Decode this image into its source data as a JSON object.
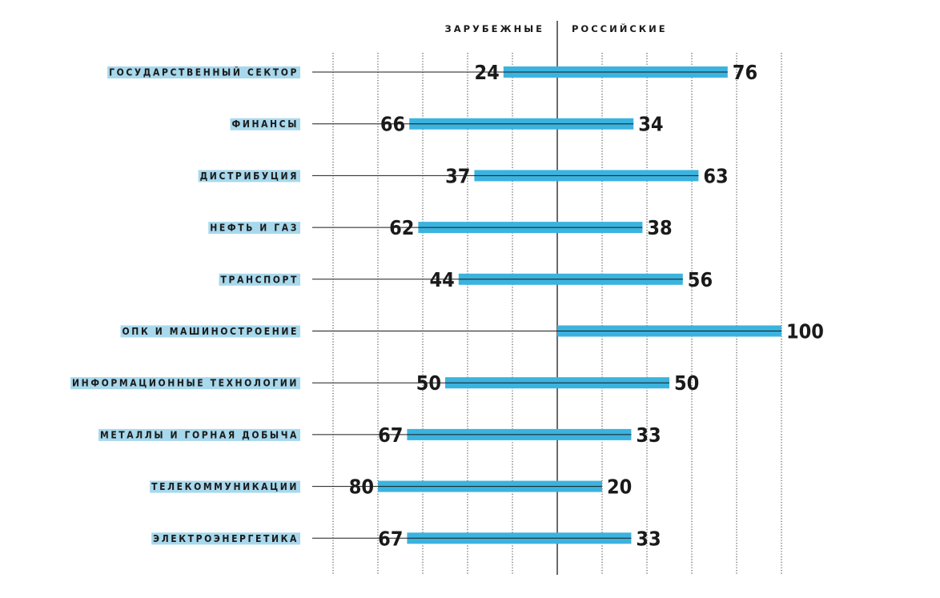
{
  "chart_data": {
    "type": "bar",
    "subtype": "diverging-horizontal-bar",
    "left_header": "ЗАРУБЕЖНЫЕ",
    "right_header": "РОССИЙСКИЕ",
    "categories": [
      "ГОСУДАРСТВЕННЫЙ СЕКТОР",
      "ФИНАНСЫ",
      "ДИСТРИБУЦИЯ",
      "НЕФТЬ И ГАЗ",
      "ТРАНСПОРТ",
      "ОПК И МАШИНОСТРОЕНИЕ",
      "ИНФОРМАЦИОННЫЕ ТЕХНОЛОГИИ",
      "МЕТАЛЛЫ И ГОРНАЯ ДОБЫЧА",
      "ТЕЛЕКОММУНИКАЦИИ",
      "ЭЛЕКТРОЭНЕРГЕТИКА"
    ],
    "series": [
      {
        "name": "ЗАРУБЕЖНЫЕ",
        "values": [
          24,
          66,
          37,
          62,
          44,
          null,
          50,
          67,
          80,
          67
        ]
      },
      {
        "name": "РОССИЙСКИЕ",
        "values": [
          76,
          34,
          63,
          38,
          56,
          100,
          50,
          33,
          20,
          33
        ]
      }
    ],
    "value_labels": {
      "left": [
        "24",
        "66",
        "37",
        "62",
        "44",
        "",
        "50",
        "67",
        "80",
        "67"
      ],
      "right": [
        "76",
        "34",
        "63",
        "38",
        "56",
        "100",
        "50",
        "33",
        "20",
        "33"
      ]
    },
    "xlim": [
      -100,
      100
    ],
    "grid_step": 20,
    "grid": true,
    "colors": {
      "bar": "#3bb3df",
      "label_highlight": "#a8d8ec",
      "text": "#1a1a1a",
      "center_line": "#1a1a1a",
      "grid": "#333333"
    }
  }
}
